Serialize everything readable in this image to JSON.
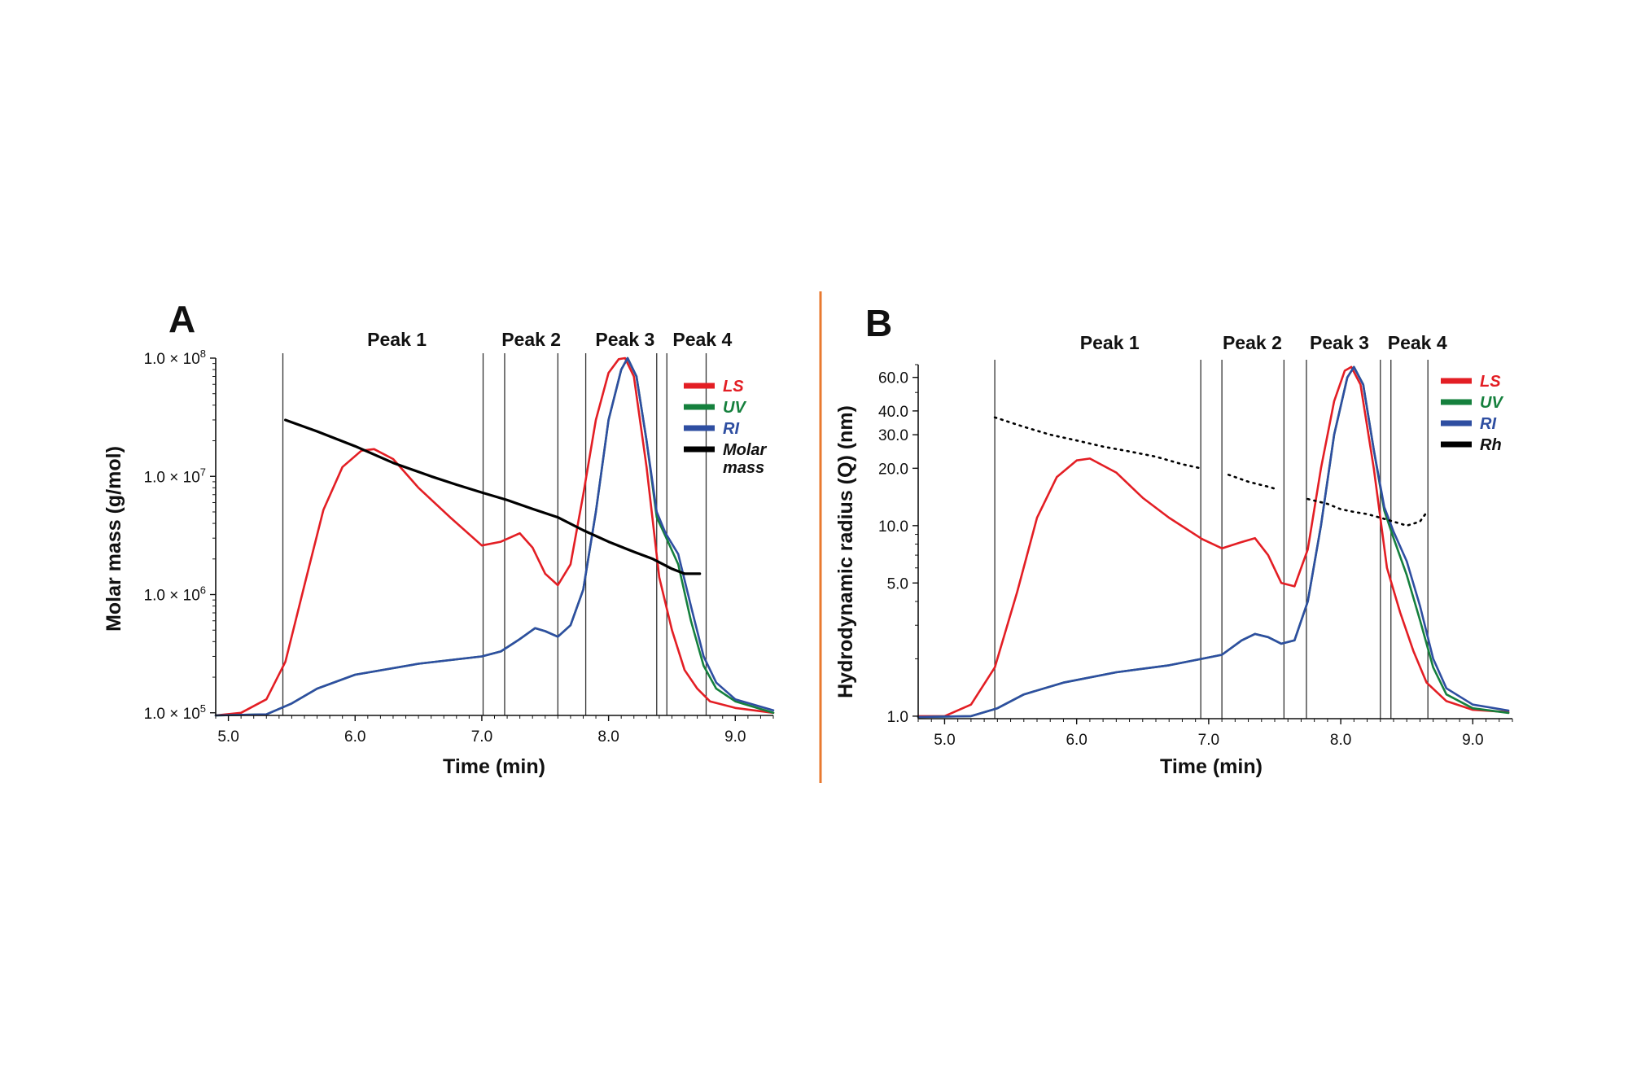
{
  "chart_data": [
    {
      "type": "line",
      "panel": "A",
      "xlabel": "Time (min)",
      "ylabel": "Molar mass (g/mol)",
      "xlim": [
        4.9,
        9.3
      ],
      "ylim": [
        95000,
        100000000
      ],
      "yscale": "log",
      "xticks": [
        5.0,
        6.0,
        7.0,
        8.0,
        9.0
      ],
      "xtick_labels": [
        "5.0",
        "6.0",
        "7.0",
        "8.0",
        "9.0"
      ],
      "yticks": [
        {
          "value": 100000,
          "mantissa": "1.0 × 10",
          "exp": "5"
        },
        {
          "value": 1000000,
          "mantissa": "1.0 × 10",
          "exp": "6"
        },
        {
          "value": 10000000,
          "mantissa": "1.0 × 10",
          "exp": "7"
        },
        {
          "value": 100000000,
          "mantissa": "1.0 × 10",
          "exp": "8"
        }
      ],
      "peak_labels": [
        {
          "text": "Peak 1",
          "x": 6.33
        },
        {
          "text": "Peak 2",
          "x": 7.39
        },
        {
          "text": "Peak 3",
          "x": 8.13
        },
        {
          "text": "Peak 4",
          "x": 8.74
        }
      ],
      "boundaries": [
        5.43,
        7.01,
        7.18,
        7.6,
        7.82,
        8.38,
        8.46,
        8.77
      ],
      "legend": [
        {
          "label": "LS",
          "color": "#e31e24"
        },
        {
          "label": "UV",
          "color": "#15803d"
        },
        {
          "label": "RI",
          "color": "#2e4ea1"
        },
        {
          "label": "Molar",
          "label2": "mass",
          "color": "#000000"
        }
      ],
      "legend_position": "right",
      "series": [
        {
          "name": "LS",
          "color": "#e31e24",
          "x": [
            4.9,
            5.1,
            5.3,
            5.45,
            5.6,
            5.75,
            5.9,
            6.05,
            6.15,
            6.3,
            6.5,
            6.75,
            7.0,
            7.15,
            7.3,
            7.4,
            7.5,
            7.6,
            7.7,
            7.8,
            7.9,
            8.0,
            8.08,
            8.13,
            8.2,
            8.3,
            8.4,
            8.5,
            8.6,
            8.7,
            8.8,
            9.0,
            9.3
          ],
          "y": [
            95000,
            100000,
            130000,
            270000,
            1200000,
            5200000,
            12000000,
            16500000,
            17000000,
            14000000,
            8000000,
            4500000,
            2600000,
            2800000,
            3300000,
            2500000,
            1500000,
            1200000,
            1800000,
            7000000,
            30000000,
            75000000,
            98000000,
            100000000,
            70000000,
            12000000,
            1400000,
            500000,
            230000,
            160000,
            125000,
            110000,
            100000
          ]
        },
        {
          "name": "UV",
          "color": "#15803d",
          "x": [
            4.9,
            5.3,
            5.5,
            5.7,
            6.0,
            6.5,
            7.0,
            7.15,
            7.3,
            7.42,
            7.5,
            7.6,
            7.7,
            7.8,
            7.9,
            8.0,
            8.1,
            8.15,
            8.22,
            8.3,
            8.38,
            8.45,
            8.55,
            8.65,
            8.75,
            8.85,
            9.0,
            9.3
          ],
          "y": [
            95000,
            97000,
            120000,
            160000,
            210000,
            260000,
            300000,
            330000,
            420000,
            520000,
            490000,
            440000,
            550000,
            1100000,
            5000000,
            30000000,
            80000000,
            100000000,
            70000000,
            20000000,
            4500000,
            3100000,
            1800000,
            600000,
            250000,
            160000,
            125000,
            100000
          ]
        },
        {
          "name": "RI",
          "color": "#2e4ea1",
          "x": [
            4.9,
            5.3,
            5.5,
            5.7,
            6.0,
            6.5,
            7.0,
            7.15,
            7.3,
            7.42,
            7.5,
            7.6,
            7.7,
            7.8,
            7.9,
            8.0,
            8.1,
            8.15,
            8.22,
            8.3,
            8.38,
            8.45,
            8.55,
            8.65,
            8.75,
            8.85,
            9.0,
            9.3
          ],
          "y": [
            95000,
            97000,
            120000,
            160000,
            210000,
            260000,
            300000,
            330000,
            420000,
            520000,
            490000,
            440000,
            550000,
            1100000,
            5000000,
            30000000,
            80000000,
            100000000,
            70000000,
            20000000,
            5000000,
            3300000,
            2200000,
            800000,
            300000,
            180000,
            130000,
            105000
          ]
        },
        {
          "name": "Molar mass",
          "color": "#000000",
          "x": [
            5.45,
            5.7,
            6.0,
            6.3,
            6.6,
            6.8,
            7.0,
            7.2,
            7.4,
            7.6,
            7.8,
            8.0,
            8.2,
            8.35,
            8.5,
            8.6,
            8.72
          ],
          "y": [
            30000000,
            24000000,
            18000000,
            13000000,
            10000000,
            8500000,
            7300000,
            6300000,
            5300000,
            4500000,
            3500000,
            2800000,
            2300000,
            2000000,
            1650000,
            1500000,
            1500000
          ]
        }
      ]
    },
    {
      "type": "line",
      "panel": "B",
      "xlabel": "Time (min)",
      "ylabel": "Hydrodynamic radius (Q) (nm)",
      "xlim": [
        4.8,
        9.3
      ],
      "ylim": [
        0.97,
        70
      ],
      "yscale": "log",
      "xticks": [
        5.0,
        6.0,
        7.0,
        8.0,
        9.0
      ],
      "xtick_labels": [
        "5.0",
        "6.0",
        "7.0",
        "8.0",
        "9.0"
      ],
      "yticks": [
        {
          "value": 1.0,
          "label": "1.0"
        },
        {
          "value": 5.0,
          "label": "5.0"
        },
        {
          "value": 10.0,
          "label": "10.0"
        },
        {
          "value": 20.0,
          "label": "20.0"
        },
        {
          "value": 30.0,
          "label": "30.0"
        },
        {
          "value": 40.0,
          "label": "40.0"
        },
        {
          "value": 60.0,
          "label": "60.0"
        }
      ],
      "peak_labels": [
        {
          "text": "Peak 1",
          "x": 6.25
        },
        {
          "text": "Peak 2",
          "x": 7.33
        },
        {
          "text": "Peak 3",
          "x": 7.99
        },
        {
          "text": "Peak 4",
          "x": 8.58
        }
      ],
      "boundaries": [
        5.38,
        6.94,
        7.1,
        7.57,
        7.74,
        8.3,
        8.38,
        8.66
      ],
      "legend": [
        {
          "label": "LS",
          "color": "#e31e24"
        },
        {
          "label": "UV",
          "color": "#15803d"
        },
        {
          "label": "RI",
          "color": "#2e4ea1"
        },
        {
          "label": "Rh",
          "color": "#000000"
        }
      ],
      "legend_position": "right",
      "series": [
        {
          "name": "LS",
          "color": "#e31e24",
          "x": [
            4.8,
            5.0,
            5.2,
            5.38,
            5.55,
            5.7,
            5.85,
            6.0,
            6.1,
            6.3,
            6.5,
            6.7,
            6.95,
            7.1,
            7.25,
            7.35,
            7.45,
            7.55,
            7.65,
            7.75,
            7.85,
            7.95,
            8.03,
            8.08,
            8.15,
            8.25,
            8.35,
            8.45,
            8.55,
            8.65,
            8.8,
            9.0,
            9.27
          ],
          "y": [
            1.0,
            1.0,
            1.15,
            1.8,
            4.5,
            11,
            18,
            22,
            22.5,
            19,
            14,
            11,
            8.5,
            7.6,
            8.2,
            8.6,
            7.0,
            5.0,
            4.8,
            7.5,
            20,
            45,
            65,
            68,
            55,
            20,
            6,
            3.5,
            2.2,
            1.5,
            1.2,
            1.08,
            1.05
          ]
        },
        {
          "name": "UV",
          "color": "#15803d",
          "x": [
            4.8,
            5.2,
            5.4,
            5.6,
            5.9,
            6.3,
            6.7,
            6.95,
            7.1,
            7.25,
            7.35,
            7.45,
            7.55,
            7.65,
            7.75,
            7.85,
            7.95,
            8.05,
            8.1,
            8.17,
            8.25,
            8.33,
            8.4,
            8.5,
            8.6,
            8.7,
            8.8,
            9.0,
            9.27
          ],
          "y": [
            0.99,
            1.0,
            1.1,
            1.3,
            1.5,
            1.7,
            1.85,
            2.0,
            2.1,
            2.5,
            2.7,
            2.6,
            2.4,
            2.5,
            4,
            10,
            30,
            60,
            68,
            55,
            25,
            12,
            8.6,
            5.5,
            3.2,
            1.8,
            1.3,
            1.1,
            1.04
          ]
        },
        {
          "name": "RI",
          "color": "#2e4ea1",
          "x": [
            4.8,
            5.2,
            5.4,
            5.6,
            5.9,
            6.3,
            6.7,
            6.95,
            7.1,
            7.25,
            7.35,
            7.45,
            7.55,
            7.65,
            7.75,
            7.85,
            7.95,
            8.05,
            8.1,
            8.17,
            8.25,
            8.33,
            8.4,
            8.5,
            8.6,
            8.7,
            8.8,
            9.0,
            9.27
          ],
          "y": [
            0.99,
            1.0,
            1.1,
            1.3,
            1.5,
            1.7,
            1.85,
            2.0,
            2.1,
            2.5,
            2.7,
            2.6,
            2.4,
            2.5,
            4,
            10,
            30,
            60,
            68,
            55,
            25,
            12.5,
            9.3,
            6.5,
            3.8,
            2.0,
            1.4,
            1.15,
            1.07
          ]
        },
        {
          "name": "Rh",
          "color": "#000000",
          "style": "dotted",
          "x": [
            5.38,
            5.6,
            5.8,
            6.0,
            6.2,
            6.4,
            6.6,
            6.8,
            6.94,
            null,
            7.15,
            7.3,
            7.45,
            7.52,
            null,
            7.75,
            7.9,
            8.0,
            8.1,
            8.2,
            8.3,
            8.4,
            8.5,
            8.6,
            8.66
          ],
          "y": [
            37,
            33,
            30,
            28,
            26,
            24.5,
            23,
            21,
            20,
            null,
            18.5,
            17,
            16,
            15.5,
            null,
            13.8,
            13,
            12.2,
            11.8,
            11.5,
            11,
            10.5,
            10,
            10.5,
            12
          ]
        }
      ]
    }
  ]
}
